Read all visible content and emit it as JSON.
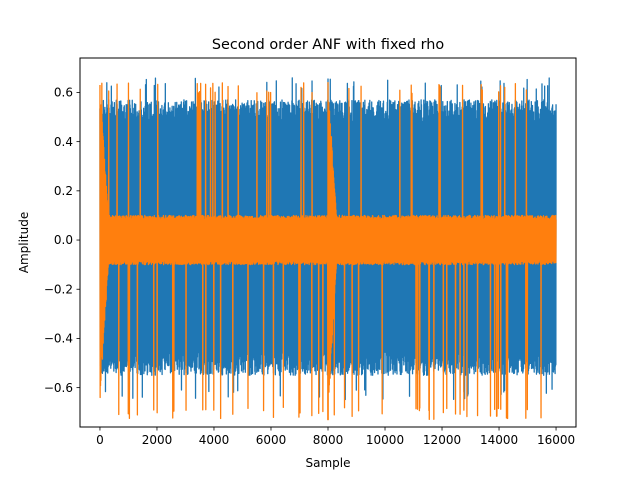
{
  "chart_data": {
    "type": "line",
    "title": "Second order ANF with fixed rho",
    "xlabel": "Sample",
    "ylabel": "Amplitude",
    "xlim": [
      -700,
      16700
    ],
    "ylim": [
      -0.76,
      0.74
    ],
    "xticks": [
      0,
      2000,
      4000,
      6000,
      8000,
      10000,
      12000,
      14000,
      16000
    ],
    "xtick_labels": [
      "0",
      "2000",
      "4000",
      "6000",
      "8000",
      "10000",
      "12000",
      "14000",
      "16000"
    ],
    "yticks": [
      -0.6,
      -0.4,
      -0.2,
      0.0,
      0.2,
      0.4,
      0.6
    ],
    "ytick_labels": [
      "−0.6",
      "−0.4",
      "−0.2",
      "0.0",
      "0.2",
      "0.4",
      "0.6"
    ],
    "grid": false,
    "legend": "none",
    "series": [
      {
        "color": "#1f77b4",
        "x_range": [
          0,
          16000
        ],
        "min": -0.65,
        "max": 0.66,
        "typical_envelope": [
          -0.55,
          0.57
        ]
      },
      {
        "color": "#ff7f0e",
        "x_range": [
          0,
          16000
        ],
        "min": -0.73,
        "max": 0.64,
        "typical_envelope": [
          -0.1,
          0.1
        ],
        "transients": [
          {
            "x": 0,
            "min": -0.64,
            "max": 0.63,
            "decay_samples": 300
          },
          {
            "x": 8000,
            "min": -0.73,
            "max": 0.64,
            "decay_samples": 300
          }
        ]
      }
    ]
  }
}
